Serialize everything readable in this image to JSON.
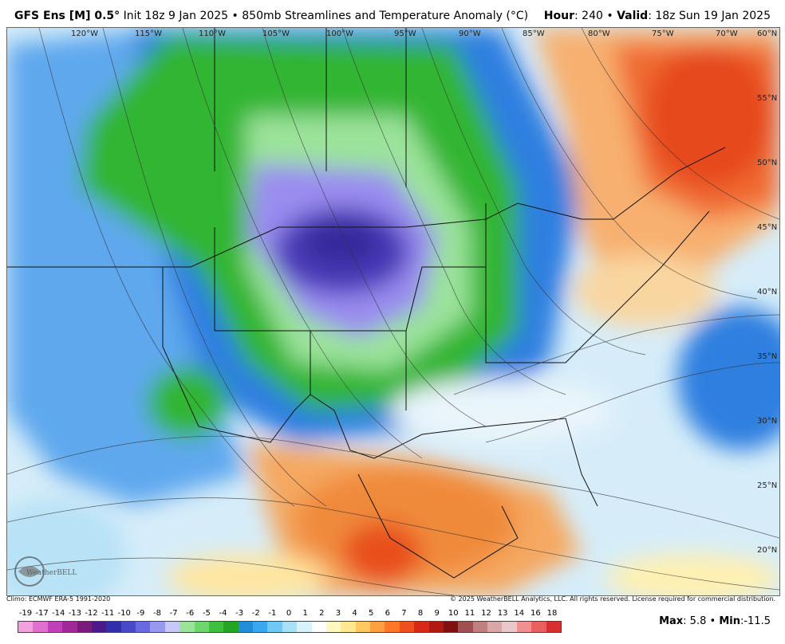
{
  "header": {
    "model": "GFS Ens [M] 0.5",
    "deg": "°",
    "init": "Init 18z 9 Jan 2025",
    "bullet": "•",
    "product": "850mb Streamlines and Temperature Anomaly (°C)",
    "hour_label": "Hour",
    "hour_value": ": 240",
    "valid_label": "Valid",
    "valid_value": ": 18z Sun 19 Jan 2025"
  },
  "lon_labels": [
    "120°W",
    "115°W",
    "110°W",
    "105°W",
    "100°W",
    "95°W",
    "90°W",
    "85°W",
    "80°W",
    "75°W",
    "70°W"
  ],
  "lat_labels": [
    "60°N",
    "55°N",
    "50°N",
    "45°N",
    "40°N",
    "35°N",
    "30°N",
    "25°N",
    "20°N"
  ],
  "footer": {
    "climo": "Climo: ECMWF ERA-5 1991-2020",
    "copyright": "© 2025 WeatherBELL Analytics, LLC. All rights reserved. License required for commercial distribution."
  },
  "logo": {
    "text": "WeatherBELL",
    "icon": "weatherbell-logo-icon"
  },
  "scale": {
    "ticks": [
      "-19",
      "-17",
      "-14",
      "-13",
      "-12",
      "-11",
      "-10",
      "-9",
      "-8",
      "-7",
      "-6",
      "-5",
      "-4",
      "-3",
      "-2",
      "-1",
      "0",
      "1",
      "2",
      "3",
      "4",
      "5",
      "6",
      "7",
      "8",
      "9",
      "10",
      "11",
      "12",
      "13",
      "14",
      "16",
      "18"
    ],
    "colors": [
      "#f2a0e0",
      "#e070d0",
      "#c040b8",
      "#a02898",
      "#7a1a7a",
      "#4a1a8a",
      "#3030a8",
      "#4848c8",
      "#6a6ae0",
      "#9898f0",
      "#c8c8f8",
      "#9be39b",
      "#6fd56f",
      "#3fbf3f",
      "#24a524",
      "#1e8fd8",
      "#3aa8f0",
      "#70c8f5",
      "#a8e0f8",
      "#d8f2fb",
      "#ffffff",
      "#fff8c0",
      "#ffe890",
      "#ffc860",
      "#ffa040",
      "#ff7828",
      "#f05020",
      "#d82818",
      "#b01810",
      "#801010",
      "#a05050",
      "#c08080",
      "#d8a8a8",
      "#e8c8c8",
      "#f09090",
      "#e86060",
      "#d83030"
    ]
  },
  "stats": {
    "max_label": "Max",
    "max_value": ": 5.8",
    "sep": "•",
    "min_label": "Min",
    "min_value": ":-11.5"
  },
  "colors": {
    "cold_core": "#3b2fa8",
    "cold": "#7766dd",
    "green": "#2fb52f",
    "blue": "#2e7fe0",
    "warm": "#f08a3a",
    "hot": "#e8401a"
  }
}
